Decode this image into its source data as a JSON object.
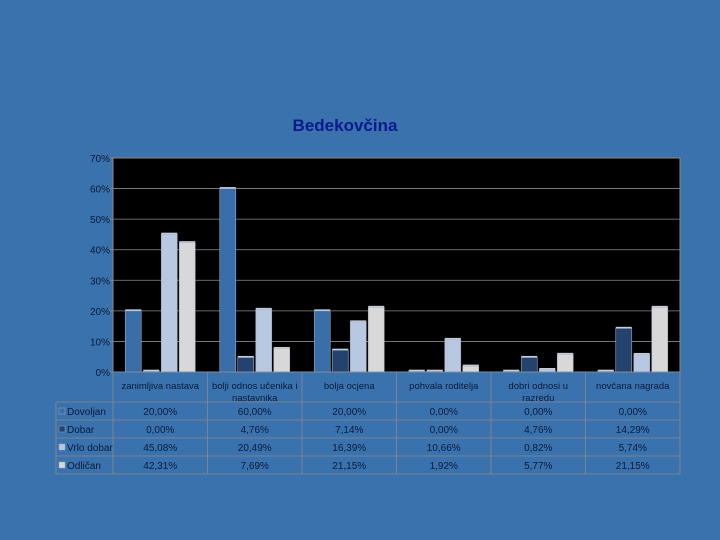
{
  "chart_data": {
    "type": "bar",
    "title": "Bedekovčina",
    "categories": [
      [
        "zanimljiva nastava"
      ],
      [
        "bolji odnos učenika i",
        "nastavnika"
      ],
      [
        "bolja ocjena"
      ],
      [
        "pohvala roditelja"
      ],
      [
        "dobri odnosi u",
        "razredu"
      ],
      [
        "novčana nagrada"
      ]
    ],
    "y_ticks": [
      "0%",
      "10%",
      "20%",
      "30%",
      "40%",
      "50%",
      "60%",
      "70%"
    ],
    "ylim": [
      0,
      70
    ],
    "grid": true,
    "legend": "table-below",
    "series": [
      {
        "name": "Dovoljan",
        "color": "#3a6ea8",
        "values": [
          20,
          60,
          20,
          0,
          0,
          0
        ],
        "labels": [
          "20,00%",
          "60,00%",
          "20,00%",
          "0,00%",
          "0,00%",
          "0,00%"
        ]
      },
      {
        "name": "Dobar",
        "color": "#23426e",
        "values": [
          0,
          4.76,
          7.14,
          0,
          4.76,
          14.29
        ],
        "labels": [
          "0,00%",
          "4,76%",
          "7,14%",
          "0,00%",
          "4,76%",
          "14,29%"
        ]
      },
      {
        "name": "Vrlo dobar",
        "color": "#b8c8e0",
        "values": [
          45.08,
          20.49,
          16.39,
          10.66,
          0.82,
          5.74
        ],
        "labels": [
          "45,08%",
          "20,49%",
          "16,39%",
          "10,66%",
          "0,82%",
          "5,74%"
        ]
      },
      {
        "name": "Odličan",
        "color": "#d8d8d8",
        "values": [
          42.31,
          7.69,
          21.15,
          1.92,
          5.77,
          21.15
        ],
        "labels": [
          "42,31%",
          "7,69%",
          "21,15%",
          "1,92%",
          "5,77%",
          "21,15%"
        ]
      }
    ]
  }
}
